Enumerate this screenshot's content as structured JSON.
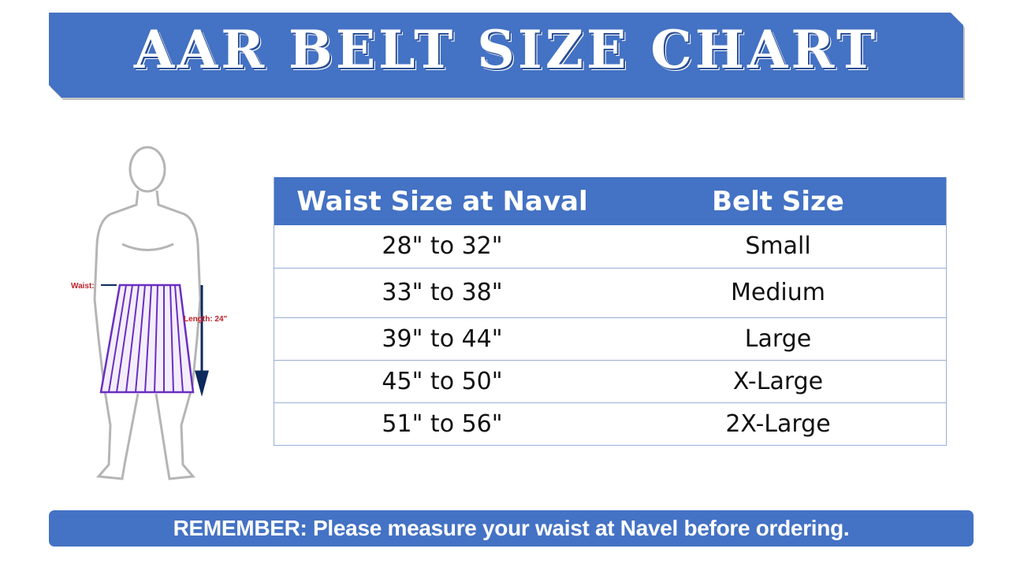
{
  "header": {
    "title": "AAR BELT SIZE CHART"
  },
  "figure": {
    "waist_label": "Waist:",
    "length_label": "Length: 24\""
  },
  "table": {
    "columns": [
      "Waist Size at Naval",
      "Belt Size"
    ],
    "rows": [
      [
        "28\" to 32\"",
        "Small"
      ],
      [
        "33\" to 38\"",
        "Medium"
      ],
      [
        "39\" to 44\"",
        "Large"
      ],
      [
        "45\" to 50\"",
        "X-Large"
      ],
      [
        "51\" to 56\"",
        "2X-Large"
      ]
    ]
  },
  "footer": {
    "note": "REMEMBER: Please measure your waist at Navel before ordering."
  },
  "colors": {
    "accent": "#4472C4",
    "skirt": "#6a2fc0",
    "arrow": "#0d2a5c",
    "label": "#c0202a"
  }
}
